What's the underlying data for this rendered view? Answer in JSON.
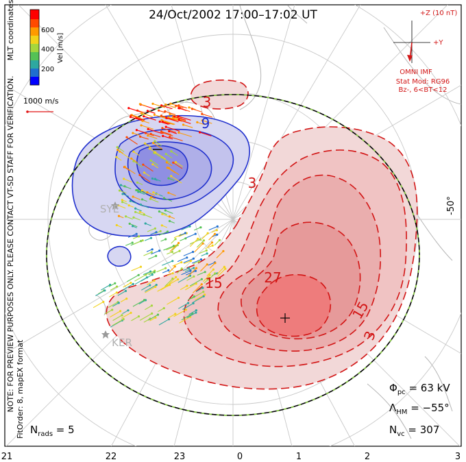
{
  "chart_data": {
    "type": "contour",
    "title": "24/Oct/2002 17:00–17:02 UT",
    "coordinates_label": "MLT coordinates",
    "colorbar": {
      "label": "Vel [m/s]",
      "ticks": [
        "600",
        "400",
        "200"
      ],
      "colors": [
        "#0000ff",
        "#1f6fcf",
        "#2ea8a0",
        "#55c255",
        "#a5d63c",
        "#f2d21a",
        "#ff9a00",
        "#ff4a00",
        "#ff0000"
      ]
    },
    "vector_scale": "1000 m/s",
    "imf": {
      "title": "+Z (10 nT)",
      "y_label": "+Y",
      "label": "OMNI IMF",
      "stat_model": "Stat Mod: RG96",
      "condition": "Bz-, 6<BT<12"
    },
    "latitude_label": "-50°",
    "bottom_ticks": [
      "21",
      "22",
      "23",
      "0",
      "1",
      "2",
      "3"
    ],
    "stations": [
      "SYE",
      "KER"
    ],
    "contour_labels_positive": [
      "3",
      "15",
      "27",
      "15",
      "3"
    ],
    "contour_labels_negative": [
      "3",
      "9"
    ],
    "notes": {
      "line1": "NOTE: FOR PREVIEW PURPOSES ONLY. PLEASE CONTACT VT-SD STAFF FOR VERIFICATION.",
      "line2": "FitOrder: 8, mapEX format"
    },
    "stats": {
      "phi_pc": {
        "symbol": "Φ",
        "sub": "pc",
        "value": " = 63 kV"
      },
      "lambda_hm": {
        "symbol": "Λ",
        "sub": "HM",
        "value": " = −55°"
      },
      "n_vc": {
        "symbol": "N",
        "sub": "vc",
        "value": " = 307"
      },
      "n_rads": {
        "symbol": "N",
        "sub": "rads",
        "value": " = 5"
      }
    }
  }
}
